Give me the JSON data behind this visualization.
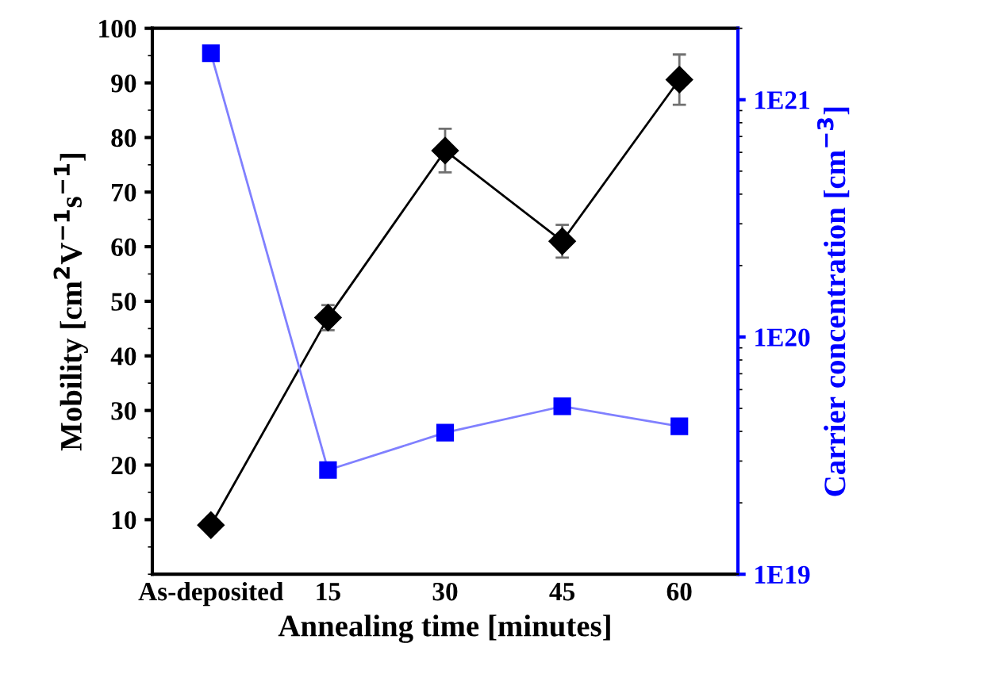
{
  "chart_data": {
    "type": "line",
    "xlabel": "Annealing time [minutes]",
    "ylabel": "Mobility [cm$^{2}$V$^{−1}$s$^{−1}$]",
    "y2label": "Carrier concentration [cm$^{−3}$]",
    "categories": [
      "As-deposited",
      "15",
      "30",
      "45",
      "60"
    ],
    "series": [
      {
        "color": "#000000",
        "marker": "diamond",
        "values": [
          9.0,
          47.0,
          77.6,
          61.0,
          90.6
        ],
        "errors": [
          1,
          2.3,
          4,
          3,
          4.6
        ]
      },
      {
        "color": "#0000ff",
        "marker": "square",
        "axis": "y2",
        "values": [
          1.57e+21,
          2.75e+19,
          3.95e+19,
          5.1e+19,
          4.2e+19
        ]
      }
    ],
    "ylim": [
      0,
      100
    ],
    "yticks": [
      10,
      20,
      30,
      40,
      50,
      60,
      70,
      80,
      90,
      100
    ],
    "log": "y2",
    "y2lim": [
      1e+19,
      2e+21
    ],
    "y2ticks": [
      {
        "value": 1e+19,
        "label": "1E19"
      },
      {
        "value": 1e+20,
        "label": "1E20"
      },
      {
        "value": 1e+21,
        "label": "1E21"
      }
    ],
    "grid": false,
    "legend": false
  }
}
